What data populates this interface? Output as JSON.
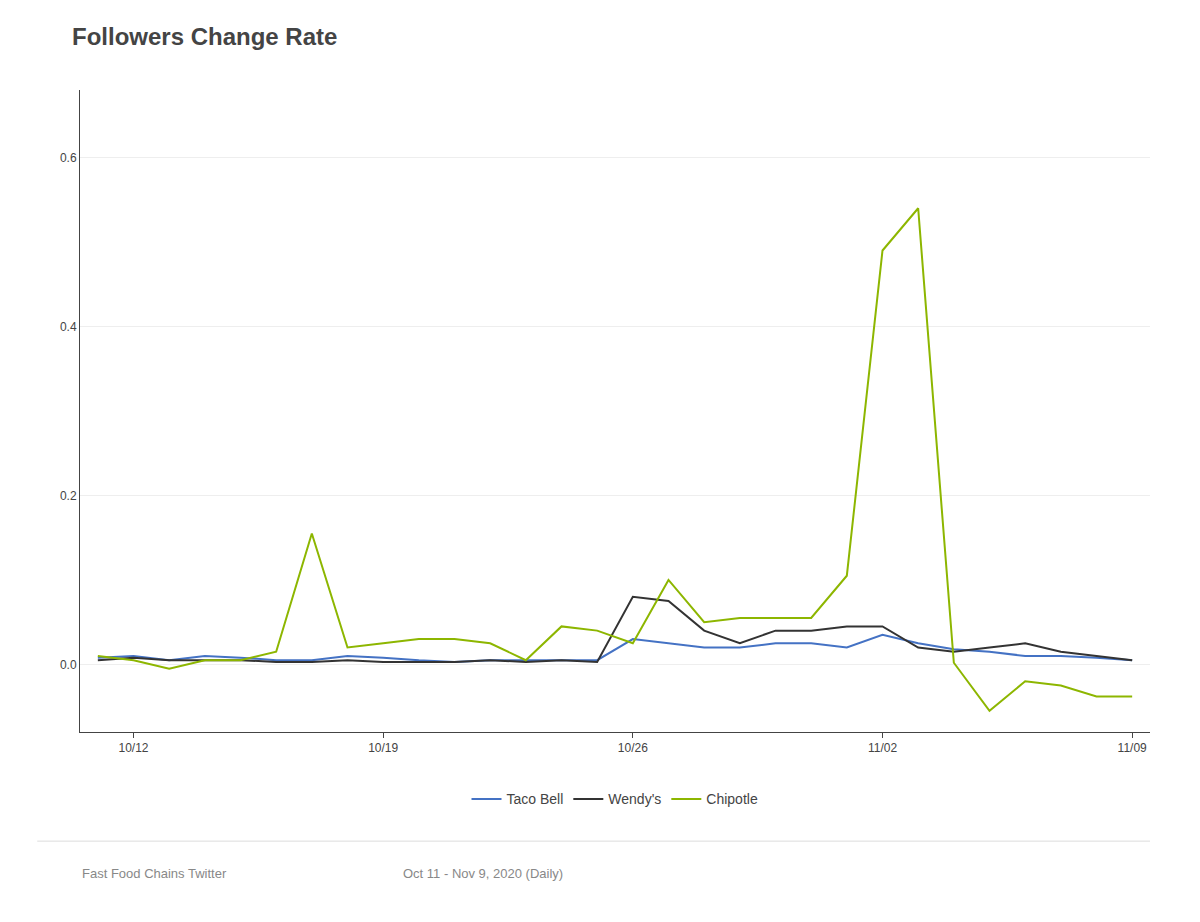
{
  "chart_data": {
    "type": "line",
    "title": "Followers Change Rate",
    "annotations": [
      "Fast Food Chains Twitter",
      "Oct 11 - Nov 9, 2020 (Daily)"
    ],
    "categories": [
      null,
      "10/12",
      null,
      null,
      null,
      null,
      null,
      null,
      "10/19",
      null,
      null,
      null,
      null,
      null,
      null,
      "10/26",
      null,
      null,
      null,
      null,
      null,
      null,
      "11/02",
      null,
      null,
      null,
      null,
      null,
      null,
      "11/09"
    ],
    "series": [
      {
        "name": "Taco Bell",
        "color": "#4472c4",
        "values": [
          0.008,
          0.01,
          0.005,
          0.01,
          0.008,
          0.005,
          0.005,
          0.01,
          0.008,
          0.005,
          0.003,
          0.005,
          0.005,
          0.005,
          0.005,
          0.03,
          0.025,
          0.02,
          0.02,
          0.025,
          0.025,
          0.02,
          0.035,
          0.025,
          0.018,
          0.015,
          0.01,
          0.01,
          0.008,
          0.005
        ]
      },
      {
        "name": "Wendy's",
        "color": "#333333",
        "values": [
          0.005,
          0.008,
          0.005,
          0.005,
          0.005,
          0.003,
          0.003,
          0.005,
          0.003,
          0.003,
          0.003,
          0.005,
          0.003,
          0.005,
          0.003,
          0.08,
          0.075,
          0.04,
          0.025,
          0.04,
          0.04,
          0.045,
          0.045,
          0.02,
          0.015,
          0.02,
          0.025,
          0.015,
          0.01,
          0.005
        ]
      },
      {
        "name": "Chipotle",
        "color": "#8db600",
        "values": [
          0.01,
          0.005,
          -0.005,
          0.005,
          0.005,
          0.015,
          0.155,
          0.02,
          0.025,
          0.03,
          0.03,
          0.025,
          0.005,
          0.045,
          0.04,
          0.025,
          0.1,
          0.05,
          0.055,
          0.055,
          0.055,
          0.105,
          0.49,
          0.54,
          0.002,
          -0.055,
          -0.02,
          -0.025,
          -0.038,
          -0.038
        ]
      }
    ],
    "ylim": [
      -0.08,
      0.68
    ],
    "yticks": [
      {
        "value": 0.0,
        "label": "0.0"
      },
      0.2,
      0.4,
      0.6
    ],
    "grid": true,
    "legend": "bottom"
  }
}
